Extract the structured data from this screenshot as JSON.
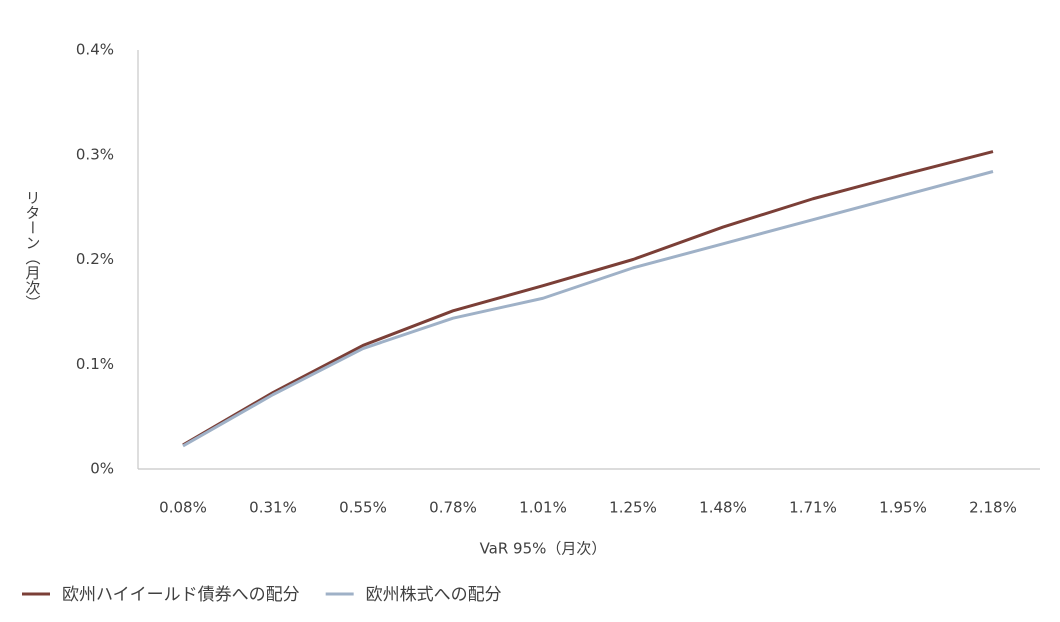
{
  "chart_data": {
    "type": "line",
    "categories": [
      "0.08%",
      "0.31%",
      "0.55%",
      "0.78%",
      "1.01%",
      "1.25%",
      "1.48%",
      "1.71%",
      "1.95%",
      "2.18%"
    ],
    "series": [
      {
        "name": "欧州ハイイールド債券への配分",
        "color": "#7b3f37",
        "values": [
          0.023,
          0.073,
          0.118,
          0.151,
          0.175,
          0.2,
          0.231,
          0.258,
          0.281,
          0.303
        ]
      },
      {
        "name": "欧州株式への配分",
        "color": "#9fb1c7",
        "values": [
          0.022,
          0.071,
          0.115,
          0.144,
          0.163,
          0.192,
          0.215,
          0.238,
          0.261,
          0.284
        ]
      }
    ],
    "ylim": [
      0,
      0.4
    ],
    "yticks": [
      {
        "value": 0,
        "label": "0%"
      },
      {
        "value": 0.1,
        "label": "0.1%"
      },
      {
        "value": 0.2,
        "label": "0.2%"
      },
      {
        "value": 0.3,
        "label": "0.3%"
      },
      {
        "value": 0.4,
        "label": "0.4%"
      }
    ],
    "x_label": "VaR 95%（月次）",
    "y_label": "リターン（月次）",
    "grid": false,
    "legend": "bottom-left"
  }
}
